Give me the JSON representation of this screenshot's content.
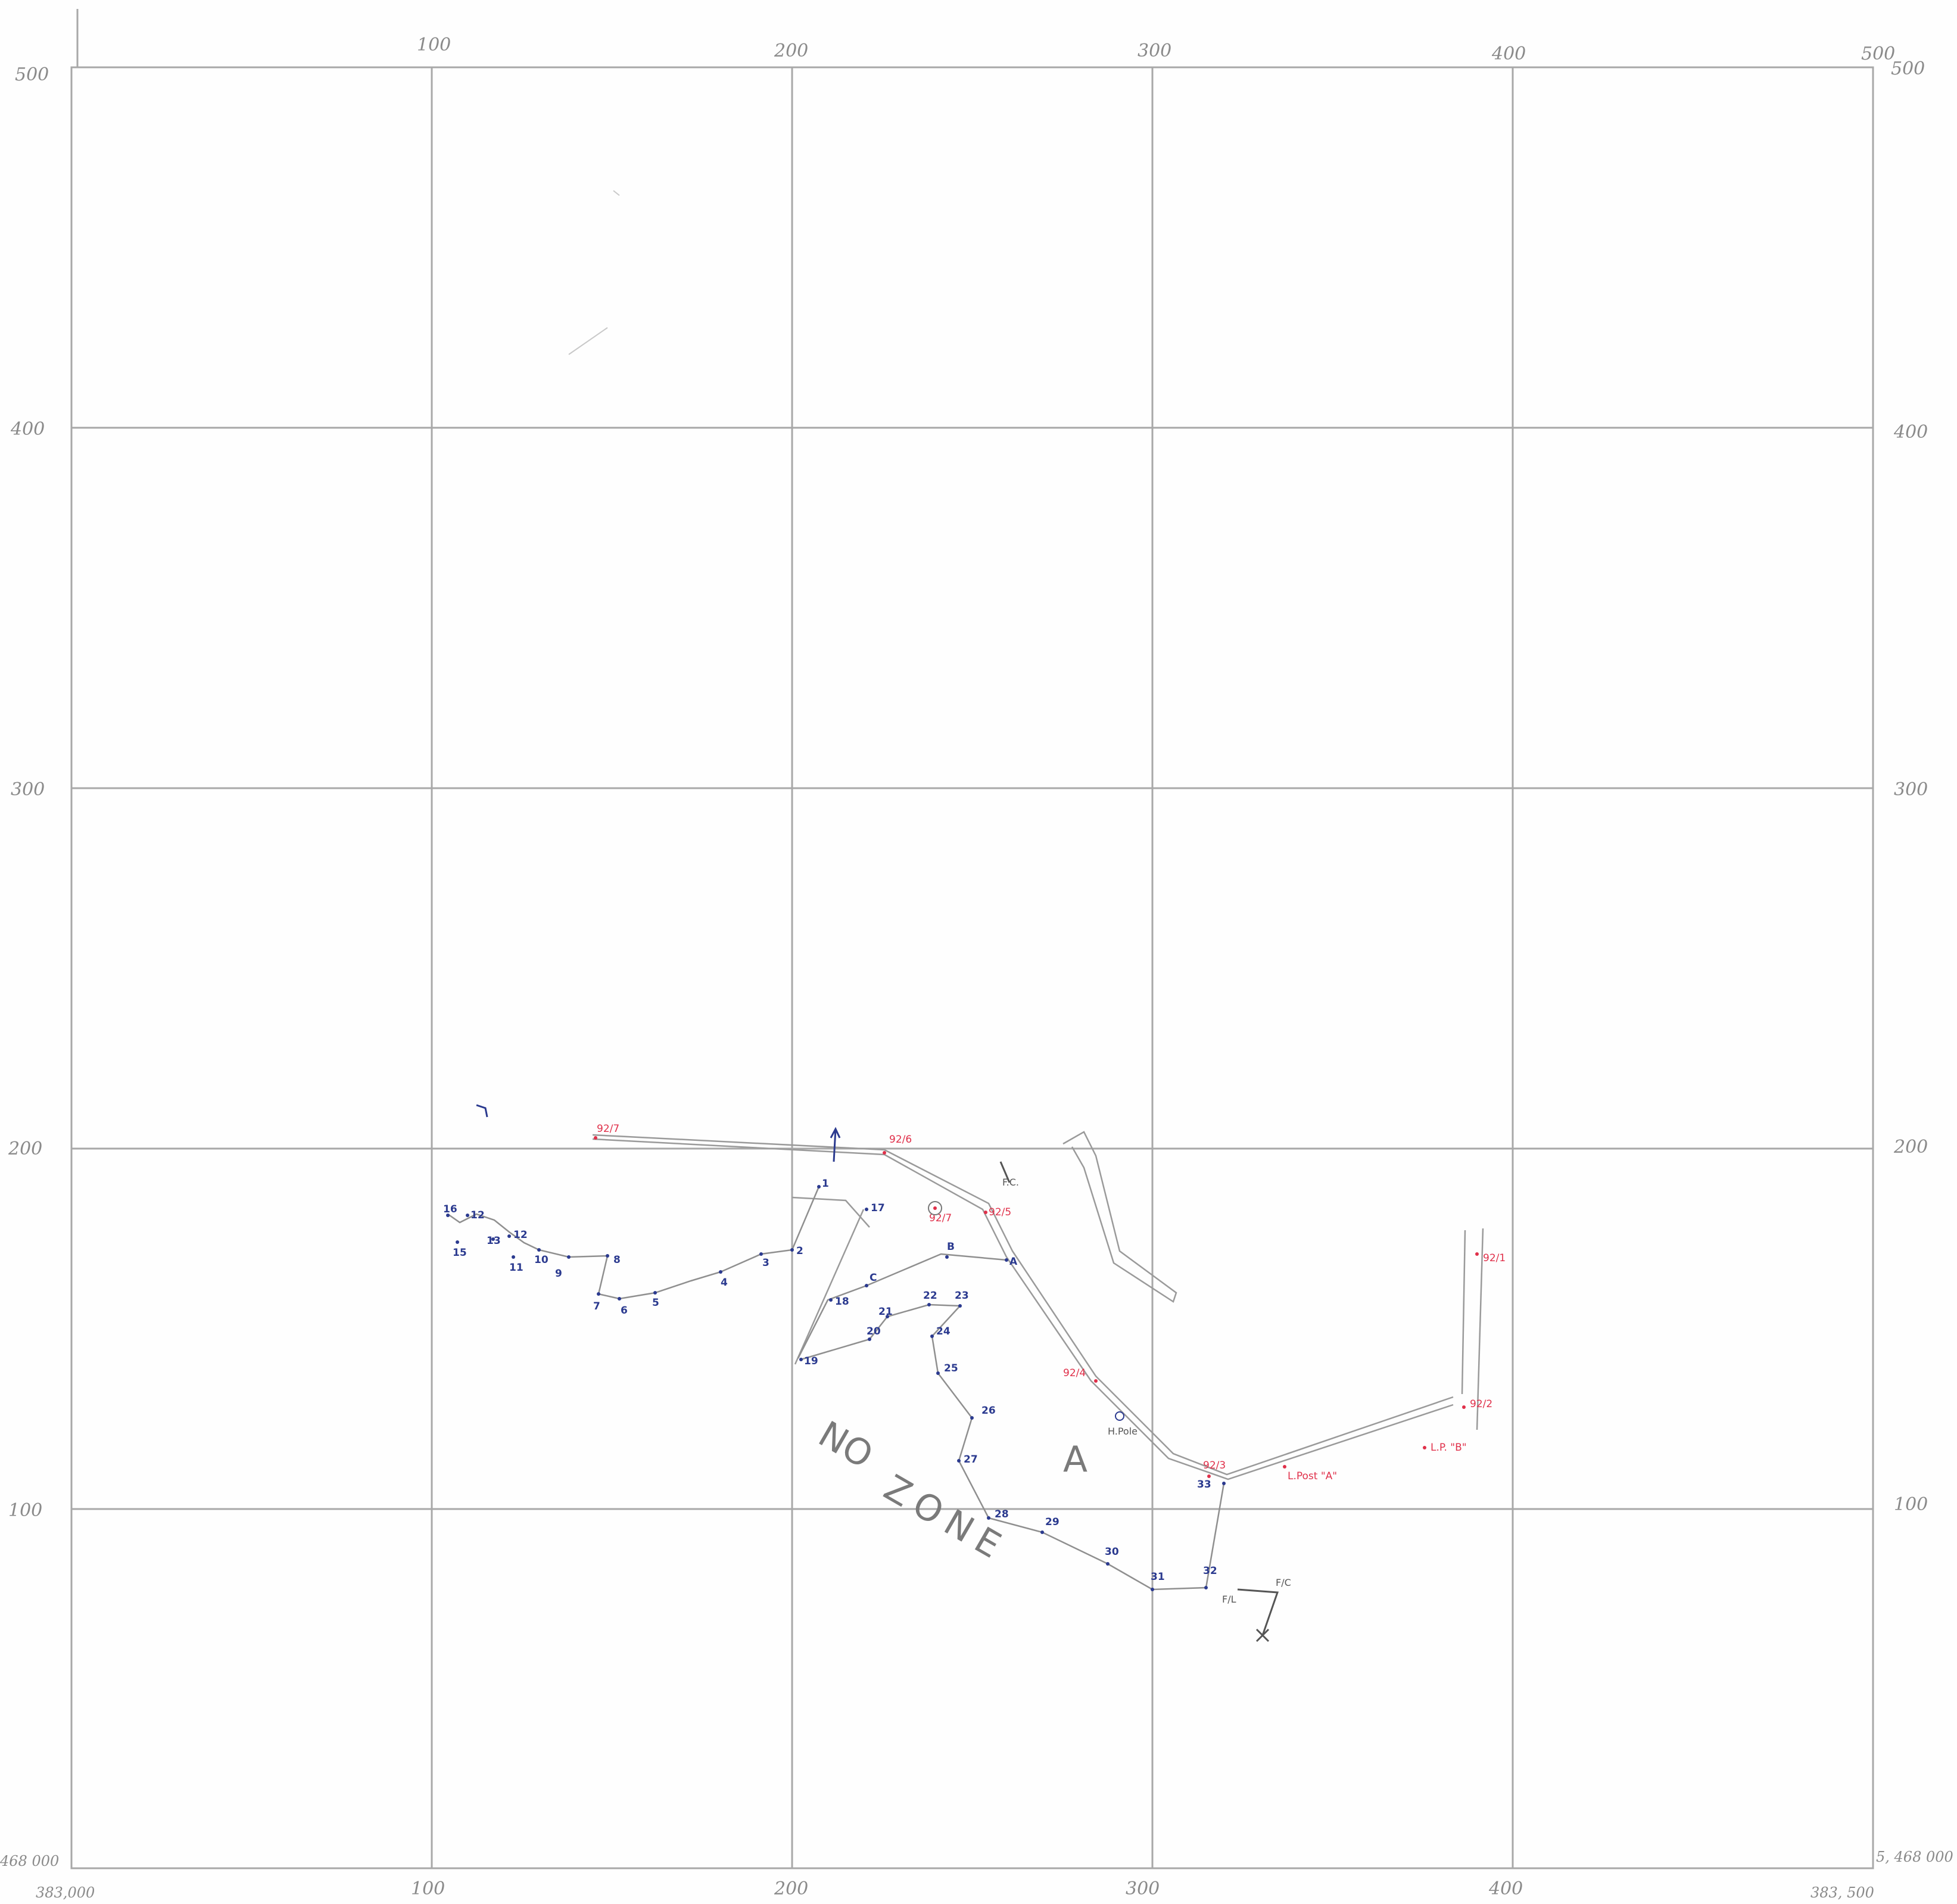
{
  "grid": {
    "x_top_labels": [
      "100",
      "200",
      "300",
      "400",
      "500"
    ],
    "x_bottom_labels": [
      "100",
      "200",
      "300",
      "400"
    ],
    "y_left_labels": [
      "500",
      "400",
      "300",
      "200",
      "100"
    ],
    "y_right_labels": [
      "500",
      "400",
      "300",
      "200",
      "100"
    ],
    "corner_bottom_left_x": "383,000",
    "corner_bottom_left_y": "468 000",
    "corner_bottom_right_x": "383, 500",
    "corner_bottom_right_y": "5, 468 000"
  },
  "blue_stations": [
    "1",
    "2",
    "3",
    "4",
    "5",
    "6",
    "7",
    "8",
    "9",
    "10",
    "11",
    "12",
    "12",
    "13",
    "15",
    "16",
    "17",
    "18",
    "19",
    "20",
    "21",
    "22",
    "23",
    "24",
    "25",
    "26",
    "27",
    "28",
    "29",
    "30",
    "31",
    "32",
    "33",
    "A",
    "B",
    "C"
  ],
  "red_labels": [
    "92/7",
    "92/6",
    "92/5",
    "92/7",
    "92/4",
    "92/3",
    "92/1",
    "92/2",
    "L.Post \"A\"",
    "L.P. \"B\""
  ],
  "pencil_labels": {
    "fc_top": "F.C.",
    "fc_bottom": "F/C",
    "fl_bottom": "F/L",
    "hole": "H.Pole"
  },
  "zone_labels": {
    "area": "A",
    "no": "NO",
    "zone": "ZONE"
  },
  "colors": {
    "grid": "#a8a8a8",
    "blue_ink": "#2b3a8f",
    "red_ink": "#e0304a",
    "pencil": "#8f8f8f"
  }
}
